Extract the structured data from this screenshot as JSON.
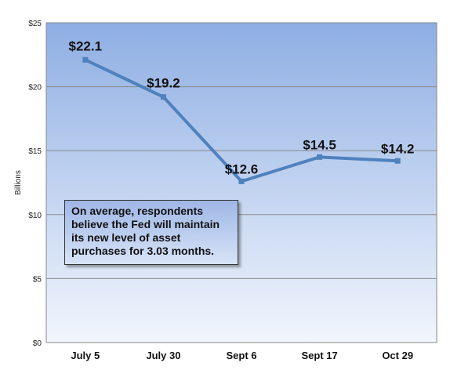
{
  "chart_data": {
    "type": "line",
    "title": "",
    "xlabel": "",
    "ylabel": "Billions",
    "categories": [
      "July 5",
      "July 30",
      "Sept 6",
      "Sept 17",
      "Oct 29"
    ],
    "series": [
      {
        "values": [
          22.1,
          19.2,
          12.6,
          14.5,
          14.2
        ],
        "data_labels": [
          "$22.1",
          "$19.2",
          "$12.6",
          "$14.5",
          "$14.2"
        ]
      }
    ],
    "ylim": [
      0,
      25
    ],
    "yticks": [
      0,
      5,
      10,
      15,
      20,
      25
    ],
    "ytick_labels": [
      "$0",
      "$5",
      "$10",
      "$15",
      "$20",
      "$25"
    ],
    "grid": true,
    "colors": {
      "line": "#4f81bd",
      "plot_top": "#8eaee3",
      "plot_bottom": "#f2f6fd"
    },
    "annotation": "On average, respondents believe the Fed  will maintain its new level of asset purchases for 3.03 months."
  }
}
